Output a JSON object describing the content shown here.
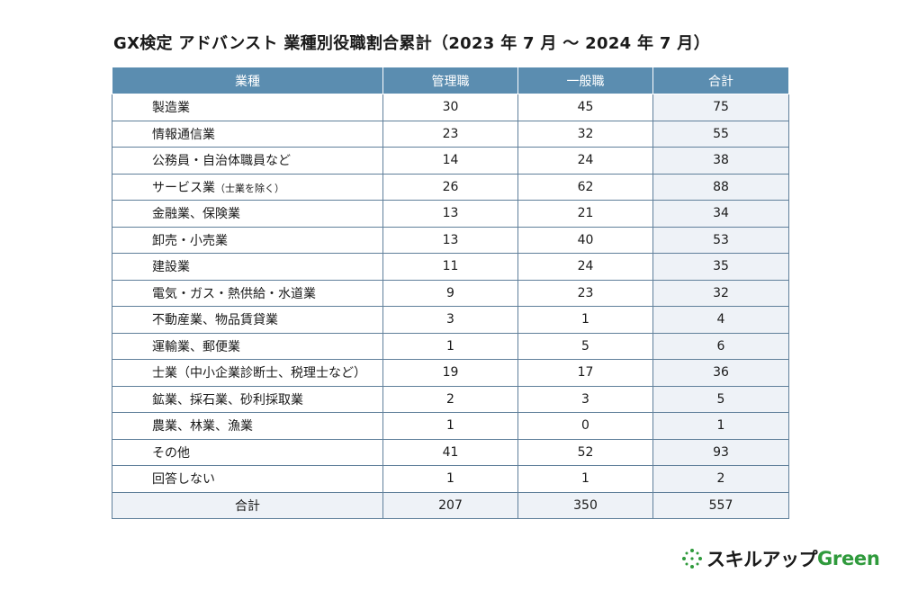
{
  "title": "GX検定 アドバンスト 業種別役職割合累計（2023 年 7 月 〜 2024 年 7 月）",
  "table": {
    "headers": [
      "業種",
      "管理職",
      "一般職",
      "合計"
    ],
    "rows": [
      {
        "name": "製造業",
        "note": "",
        "manager": "30",
        "general": "45",
        "total": "75"
      },
      {
        "name": "情報通信業",
        "note": "",
        "manager": "23",
        "general": "32",
        "total": "55"
      },
      {
        "name": "公務員・自治体職員など",
        "note": "",
        "manager": "14",
        "general": "24",
        "total": "38"
      },
      {
        "name": "サービス業",
        "note": "（士業を除く）",
        "manager": "26",
        "general": "62",
        "total": "88"
      },
      {
        "name": "金融業、保険業",
        "note": "",
        "manager": "13",
        "general": "21",
        "total": "34"
      },
      {
        "name": "卸売・小売業",
        "note": "",
        "manager": "13",
        "general": "40",
        "total": "53"
      },
      {
        "name": "建設業",
        "note": "",
        "manager": "11",
        "general": "24",
        "total": "35"
      },
      {
        "name": "電気・ガス・熱供給・水道業",
        "note": "",
        "manager": "9",
        "general": "23",
        "total": "32"
      },
      {
        "name": "不動産業、物品賃貸業",
        "note": "",
        "manager": "3",
        "general": "1",
        "total": "4"
      },
      {
        "name": "運輸業、郵便業",
        "note": "",
        "manager": "1",
        "general": "5",
        "total": "6"
      },
      {
        "name": "士業（中小企業診断士、税理士など）",
        "note": "",
        "manager": "19",
        "general": "17",
        "total": "36"
      },
      {
        "name": "鉱業、採石業、砂利採取業",
        "note": "",
        "manager": "2",
        "general": "3",
        "total": "5"
      },
      {
        "name": "農業、林業、漁業",
        "note": "",
        "manager": "1",
        "general": "0",
        "total": "1"
      },
      {
        "name": "その他",
        "note": "",
        "manager": "41",
        "general": "52",
        "total": "93"
      },
      {
        "name": "回答しない",
        "note": "",
        "manager": "1",
        "general": "1",
        "total": "2"
      }
    ],
    "total_row": {
      "name": "合計",
      "manager": "207",
      "general": "350",
      "total": "557"
    }
  },
  "logo": {
    "ja": "スキルアップ",
    "en": "Green"
  },
  "colors": {
    "header_bg": "#5b8db0",
    "total_bg": "#eef2f7",
    "brand_green": "#2f9a3c"
  }
}
